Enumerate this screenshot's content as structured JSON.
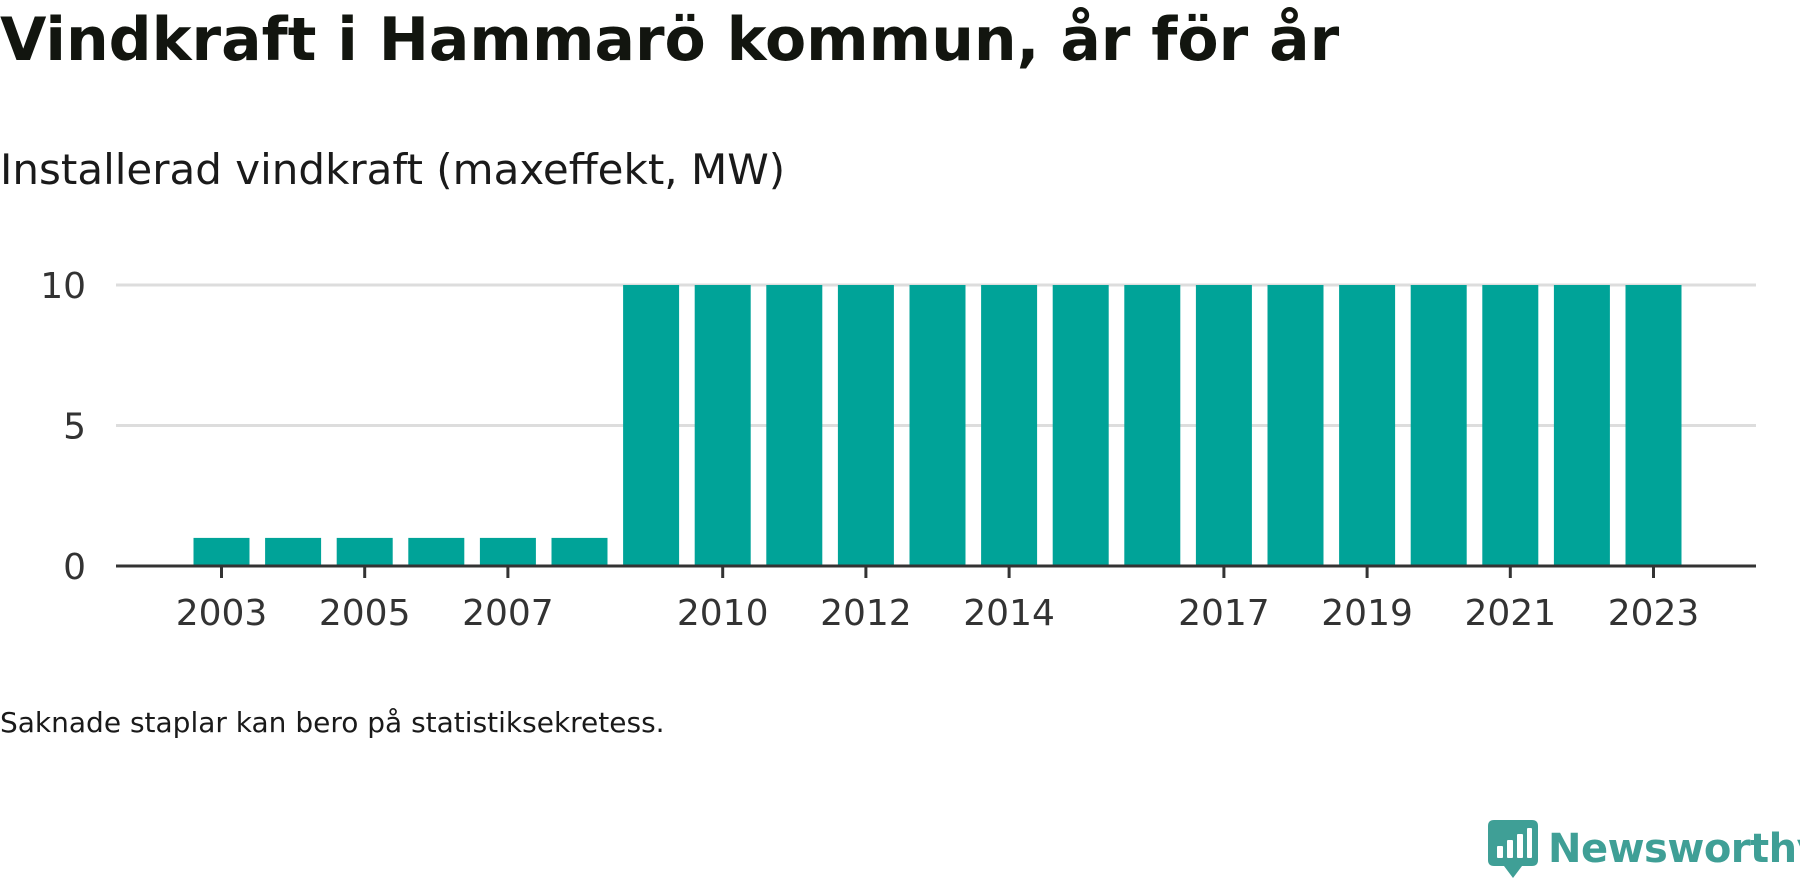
{
  "title": "Vindkraft i Hammarö kommun, år för år",
  "subtitle": "Installerad vindkraft (maxeffekt, MW)",
  "footnote": "Saknade staplar kan bero på statistiksekretess.",
  "brand": {
    "name": "Newsworthy",
    "color": "#3f9f96",
    "icon": "newsworthy-logo-icon"
  },
  "colors": {
    "bar": "#00a398",
    "grid": "#dddddd",
    "axis": "#333333",
    "tick_text": "#333333"
  },
  "chart_data": {
    "type": "bar",
    "title": "Installerad vindkraft (maxeffekt, MW)",
    "xlabel": "",
    "ylabel": "",
    "categories": [
      "2003",
      "2004",
      "2005",
      "2006",
      "2007",
      "2008",
      "2009",
      "2010",
      "2011",
      "2012",
      "2013",
      "2014",
      "2015",
      "2016",
      "2017",
      "2018",
      "2019",
      "2020",
      "2021",
      "2022",
      "2023"
    ],
    "x_tick_labels": [
      "2003",
      "2005",
      "2007",
      "2010",
      "2012",
      "2014",
      "2017",
      "2019",
      "2021",
      "2023"
    ],
    "values": [
      1,
      1,
      1,
      1,
      1,
      1,
      10,
      10,
      10,
      10,
      10,
      10,
      10,
      10,
      10,
      10,
      10,
      10,
      10,
      10,
      10
    ],
    "y_ticks": [
      0,
      5,
      10
    ],
    "ylim": [
      0,
      10
    ],
    "grid": true,
    "legend": "none"
  }
}
